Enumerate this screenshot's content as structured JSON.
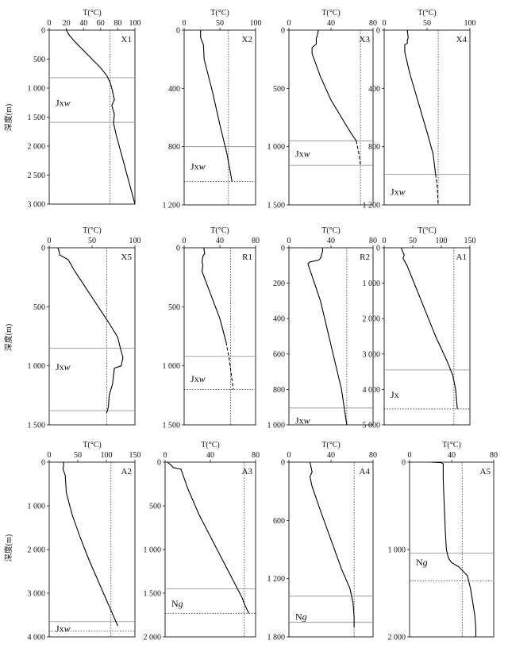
{
  "figure": {
    "depth_axis_label": "深度(m)",
    "temp_axis_label": "T(°C)"
  },
  "chart_data": [
    {
      "type": "line",
      "name": "X1",
      "xlim": [
        0,
        100
      ],
      "xticks": [
        0,
        20,
        40,
        60,
        80,
        100
      ],
      "xtick_labels": [
        "0",
        "20",
        "40",
        "60",
        "80",
        "100"
      ],
      "ylim": [
        0,
        3000
      ],
      "yticks": [
        0,
        500,
        1000,
        1500,
        2000,
        2500,
        3000
      ],
      "ytick_labels": [
        "0",
        "500",
        "1 000",
        "1 500",
        "2 000",
        "2 500",
        "3 000"
      ],
      "dotted_x": 71,
      "hlines": [
        {
          "y": 820,
          "style": "solid"
        },
        {
          "y": 1590,
          "style": "solid"
        }
      ],
      "labels": [
        {
          "text": "Jx",
          "italic": "w",
          "y": 1250
        }
      ],
      "series": [
        {
          "style": "solid",
          "x": [
            20,
            24,
            30,
            40,
            50,
            60,
            67,
            71,
            73,
            76,
            73,
            76,
            75,
            78,
            100
          ],
          "y": [
            0,
            100,
            200,
            350,
            500,
            650,
            780,
            900,
            1000,
            1200,
            1300,
            1450,
            1600,
            1800,
            3000
          ]
        }
      ]
    },
    {
      "type": "line",
      "name": "X2",
      "xlim": [
        0,
        100
      ],
      "xticks": [
        0,
        50,
        100
      ],
      "xtick_labels": [
        "0",
        "50",
        "100"
      ],
      "ylim": [
        0,
        1200
      ],
      "yticks": [
        0,
        400,
        800,
        1200
      ],
      "ytick_labels": [
        "0",
        "400",
        "800",
        "1 200"
      ],
      "dotted_x": 62,
      "hlines": [
        {
          "y": 800,
          "style": "solid"
        },
        {
          "y": 1040,
          "style": "dotted"
        }
      ],
      "labels": [
        {
          "text": "Jx",
          "italic": "w",
          "y": 935
        }
      ],
      "series": [
        {
          "style": "solid",
          "x": [
            23,
            23,
            27,
            28,
            40,
            50,
            60,
            67
          ],
          "y": [
            0,
            50,
            100,
            200,
            430,
            650,
            850,
            1040
          ]
        }
      ]
    },
    {
      "type": "line",
      "name": "X3",
      "xlim": [
        0,
        80
      ],
      "xticks": [
        0,
        40,
        80
      ],
      "xtick_labels": [
        "0",
        "40",
        "80"
      ],
      "ylim": [
        0,
        1500
      ],
      "yticks": [
        0,
        500,
        1000,
        1500
      ],
      "ytick_labels": [
        "0",
        "500",
        "1 000",
        "1 500"
      ],
      "dotted_x": 68,
      "hlines": [
        {
          "y": 950,
          "style": "solid"
        },
        {
          "y": 1160,
          "style": "solid"
        }
      ],
      "labels": [
        {
          "text": "Jx",
          "italic": "w",
          "y": 1060
        }
      ],
      "series": [
        {
          "style": "solid",
          "x": [
            28,
            27,
            26,
            26,
            22,
            22,
            30,
            40,
            50,
            58,
            64
          ],
          "y": [
            0,
            50,
            70,
            120,
            150,
            200,
            400,
            600,
            750,
            870,
            950
          ]
        },
        {
          "style": "dashed",
          "x": [
            64,
            67,
            68
          ],
          "y": [
            950,
            1080,
            1160
          ]
        }
      ]
    },
    {
      "type": "line",
      "name": "X4",
      "xlim": [
        0,
        100
      ],
      "xticks": [
        0,
        50,
        100
      ],
      "xtick_labels": [
        "0",
        "50",
        "100"
      ],
      "ylim": [
        0,
        1200
      ],
      "yticks": [
        0,
        400,
        800,
        1200
      ],
      "ytick_labels": [
        "0",
        "400",
        "800",
        "1 200"
      ],
      "dotted_x": 63,
      "hlines": [
        {
          "y": 990,
          "style": "solid"
        }
      ],
      "labels": [
        {
          "text": "Jx",
          "italic": "w",
          "y": 1110
        }
      ],
      "series": [
        {
          "style": "solid",
          "x": [
            27,
            28,
            27,
            27,
            24,
            24,
            30,
            40,
            50,
            57,
            60
          ],
          "y": [
            0,
            50,
            70,
            90,
            100,
            150,
            300,
            500,
            700,
            850,
            990
          ]
        },
        {
          "style": "dashed",
          "x": [
            60,
            62,
            63
          ],
          "y": [
            990,
            1080,
            1200
          ]
        }
      ]
    },
    {
      "type": "line",
      "name": "X5",
      "xlim": [
        0,
        100
      ],
      "xticks": [
        0,
        50,
        100
      ],
      "xtick_labels": [
        "0",
        "50",
        "100"
      ],
      "ylim": [
        0,
        1500
      ],
      "yticks": [
        0,
        500,
        1000,
        1500
      ],
      "ytick_labels": [
        "0",
        "500",
        "1 000",
        "1 500"
      ],
      "dotted_x": 67,
      "hlines": [
        {
          "y": 850,
          "style": "solid"
        },
        {
          "y": 1380,
          "style": "solid"
        }
      ],
      "labels": [
        {
          "text": "Jx",
          "italic": "w",
          "y": 1010
        }
      ],
      "series": [
        {
          "style": "solid",
          "x": [
            10,
            12,
            12,
            22,
            30,
            50,
            70,
            80,
            83,
            86,
            84,
            76,
            74,
            70,
            69,
            67
          ],
          "y": [
            0,
            40,
            60,
            100,
            200,
            420,
            640,
            760,
            850,
            930,
            1000,
            1020,
            1150,
            1250,
            1350,
            1400
          ]
        }
      ]
    },
    {
      "type": "line",
      "name": "R1",
      "xlim": [
        0,
        80
      ],
      "xticks": [
        0,
        40,
        80
      ],
      "xtick_labels": [
        "0",
        "40",
        "80"
      ],
      "ylim": [
        0,
        1500
      ],
      "yticks": [
        0,
        500,
        1000,
        1500
      ],
      "ytick_labels": [
        "0",
        "500",
        "1 000",
        "1 500"
      ],
      "dotted_x": 52,
      "hlines": [
        {
          "y": 920,
          "style": "solid"
        },
        {
          "y": 1200,
          "style": "dotted"
        }
      ],
      "labels": [
        {
          "text": "Jx",
          "italic": "w",
          "y": 1110
        }
      ],
      "series": [
        {
          "style": "solid",
          "x": [
            22,
            23,
            21,
            20,
            21,
            20,
            30,
            40,
            47
          ],
          "y": [
            0,
            50,
            70,
            120,
            150,
            200,
            400,
            600,
            800
          ]
        },
        {
          "style": "dashed",
          "x": [
            47,
            50,
            55
          ],
          "y": [
            800,
            920,
            1200
          ]
        }
      ]
    },
    {
      "type": "line",
      "name": "R2",
      "xlim": [
        0,
        80
      ],
      "xticks": [
        0,
        40,
        80
      ],
      "xtick_labels": [
        "0",
        "40",
        "80"
      ],
      "ylim": [
        0,
        1000
      ],
      "yticks": [
        0,
        200,
        400,
        600,
        800,
        1000
      ],
      "ytick_labels": [
        "0",
        "200",
        "400",
        "600",
        "800",
        "1 000"
      ],
      "dotted_x": 55,
      "hlines": [
        {
          "y": 905,
          "style": "solid"
        }
      ],
      "labels": [
        {
          "text": "Jx",
          "italic": "w",
          "y": 975
        }
      ],
      "series": [
        {
          "style": "solid",
          "x": [
            32,
            32,
            31,
            30,
            28,
            20,
            18,
            30,
            40,
            50,
            55
          ],
          "y": [
            0,
            20,
            40,
            60,
            70,
            80,
            90,
            300,
            550,
            800,
            1000
          ]
        }
      ]
    },
    {
      "type": "line",
      "name": "A1",
      "xlim": [
        0,
        150
      ],
      "xticks": [
        0,
        50,
        100,
        150
      ],
      "xtick_labels": [
        "0",
        "50",
        "100",
        "150"
      ],
      "ylim": [
        0,
        5000
      ],
      "yticks": [
        0,
        1000,
        2000,
        3000,
        4000,
        5000
      ],
      "ytick_labels": [
        "0",
        "1 000",
        "2 000",
        "3 000",
        "4 000",
        "5 000"
      ],
      "dotted_x": 122,
      "hlines": [
        {
          "y": 3450,
          "style": "solid"
        },
        {
          "y": 4550,
          "style": "dotted"
        }
      ],
      "labels": [
        {
          "text": "Jx",
          "italic": "",
          "y": 4150
        }
      ],
      "series": [
        {
          "style": "solid",
          "x": [
            30,
            32,
            35,
            33,
            40,
            50,
            60,
            70,
            80,
            90,
            100,
            110,
            120,
            125,
            128
          ],
          "y": [
            0,
            100,
            200,
            300,
            500,
            900,
            1300,
            1700,
            2100,
            2500,
            2850,
            3200,
            3600,
            4000,
            4550
          ]
        }
      ]
    },
    {
      "type": "line",
      "name": "A2",
      "xlim": [
        0,
        150
      ],
      "xticks": [
        0,
        50,
        100,
        150
      ],
      "xtick_labels": [
        "0",
        "50",
        "100",
        "150"
      ],
      "ylim": [
        0,
        4000
      ],
      "yticks": [
        0,
        1000,
        2000,
        3000,
        4000
      ],
      "ytick_labels": [
        "0",
        "1 000",
        "2 000",
        "3 000",
        "4 000"
      ],
      "dotted_x": 108,
      "hlines": [
        {
          "y": 3650,
          "style": "solid"
        },
        {
          "y": 3870,
          "style": "dotted"
        }
      ],
      "labels": [
        {
          "text": "Jx",
          "italic": "w",
          "y": 3810
        }
      ],
      "series": [
        {
          "style": "solid",
          "x": [
            25,
            25,
            24,
            28,
            30,
            40,
            55,
            70,
            85,
            100,
            110,
            120
          ],
          "y": [
            0,
            100,
            150,
            300,
            700,
            1200,
            1750,
            2250,
            2700,
            3150,
            3450,
            3750
          ]
        }
      ]
    },
    {
      "type": "line",
      "name": "A3",
      "xlim": [
        0,
        80
      ],
      "xticks": [
        0,
        40,
        80
      ],
      "xtick_labels": [
        "0",
        "40",
        "80"
      ],
      "ylim": [
        0,
        2000
      ],
      "yticks": [
        0,
        500,
        1000,
        1500,
        2000
      ],
      "ytick_labels": [
        "0",
        "500",
        "1 000",
        "1 500",
        "2 000"
      ],
      "dotted_x": 70,
      "hlines": [
        {
          "y": 1450,
          "style": "solid"
        },
        {
          "y": 1730,
          "style": "dotted"
        }
      ],
      "labels": [
        {
          "text": "N",
          "italic": "g",
          "y": 1620
        }
      ],
      "series": [
        {
          "style": "solid",
          "x": [
            2,
            5,
            7,
            10,
            12,
            14,
            20,
            30,
            40,
            50,
            60,
            68,
            71,
            74
          ],
          "y": [
            0,
            30,
            60,
            70,
            75,
            80,
            300,
            600,
            850,
            1100,
            1350,
            1550,
            1650,
            1730
          ]
        }
      ]
    },
    {
      "type": "line",
      "name": "A4",
      "xlim": [
        0,
        80
      ],
      "xticks": [
        0,
        40,
        80
      ],
      "xtick_labels": [
        "0",
        "40",
        "80"
      ],
      "ylim": [
        0,
        1800
      ],
      "yticks": [
        0,
        600,
        1200,
        1800
      ],
      "ytick_labels": [
        "0",
        "600",
        "1 200",
        "1 800"
      ],
      "dotted_x": 62,
      "hlines": [
        {
          "y": 1380,
          "style": "solid"
        },
        {
          "y": 1650,
          "style": "solid"
        }
      ],
      "labels": [
        {
          "text": "N",
          "italic": "g",
          "y": 1590
        }
      ],
      "series": [
        {
          "style": "solid",
          "x": [
            20,
            22,
            20,
            22,
            30,
            40,
            50,
            58,
            61,
            62,
            62
          ],
          "y": [
            0,
            100,
            150,
            250,
            500,
            800,
            1100,
            1300,
            1450,
            1600,
            1700
          ]
        }
      ]
    },
    {
      "type": "line",
      "name": "A5",
      "xlim": [
        0,
        80
      ],
      "xticks": [
        0,
        40,
        80
      ],
      "xtick_labels": [
        "0",
        "40",
        "80"
      ],
      "ylim": [
        0,
        2000
      ],
      "yticks": [
        0,
        1000,
        2000
      ],
      "ytick_labels": [
        "0",
        "1 000",
        "2 000"
      ],
      "dotted_x": 50,
      "hlines": [
        {
          "y": 1040,
          "style": "solid"
        },
        {
          "y": 1360,
          "style": "dotted"
        }
      ],
      "labels": [
        {
          "text": "N",
          "italic": "g",
          "y": 1145
        }
      ],
      "series": [
        {
          "style": "solid",
          "x": [
            20,
            30,
            32,
            32,
            33,
            34,
            35,
            37,
            40,
            47,
            55,
            58,
            60,
            62,
            63,
            63
          ],
          "y": [
            0,
            5,
            20,
            200,
            500,
            800,
            1000,
            1100,
            1150,
            1200,
            1300,
            1450,
            1600,
            1750,
            1900,
            2000
          ]
        }
      ]
    }
  ]
}
